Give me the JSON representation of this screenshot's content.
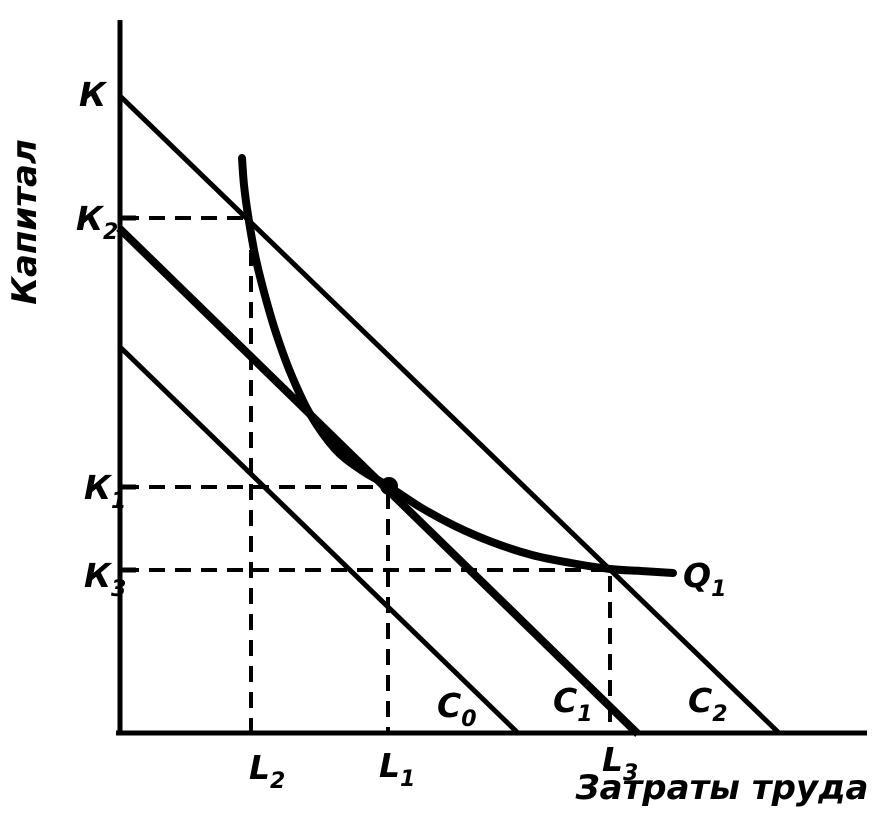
{
  "figure": {
    "background": "#ffffff",
    "ink": "#000000"
  },
  "chart_data": {
    "type": "line",
    "title": "",
    "xlabel": "Затраты труда",
    "ylabel": "Капитал",
    "grid": false,
    "legend": "none",
    "x_tick_labels": [
      "L2",
      "L1",
      "L3"
    ],
    "y_tick_labels": [
      "К",
      "К2",
      "К1",
      "К3"
    ],
    "series": [
      {
        "name": "C0",
        "kind": "isocost-line",
        "thick": false
      },
      {
        "name": "C1",
        "kind": "isocost-line",
        "thick": true
      },
      {
        "name": "C2",
        "kind": "isocost-line",
        "thick": false
      },
      {
        "name": "Q1",
        "kind": "isoquant-curve",
        "thick": true
      }
    ],
    "key_points": [
      {
        "x": "L2",
        "y": "К2",
        "meaning": "Q1 crosses C2 (upper), marked by dashed guides"
      },
      {
        "x": "L1",
        "y": "К1",
        "meaning": "tangency of Q1 and C1, marked with filled dot"
      },
      {
        "x": "L3",
        "y": "К3",
        "meaning": "Q1 crosses C2 (lower), marked by dashed guides"
      }
    ],
    "ink": "#000000",
    "dash_pattern": "16 10",
    "geometry": {
      "axis_width": 5,
      "guide_width": 4,
      "y_axis": {
        "from": [
          120,
          20
        ],
        "to": [
          120,
          735
        ]
      },
      "x_axis": {
        "from": [
          116,
          733
        ],
        "to": [
          867,
          733
        ]
      },
      "y_ticks": [
        {
          "from": [
            118,
            218
          ],
          "to": [
            136,
            218
          ]
        },
        {
          "from": [
            118,
            487
          ],
          "to": [
            136,
            487
          ]
        },
        {
          "from": [
            118,
            570
          ],
          "to": [
            136,
            570
          ]
        }
      ],
      "guides": [
        {
          "name": "guide-K2-horizontal",
          "from": [
            123,
            218
          ],
          "to": [
            246,
            218
          ]
        },
        {
          "name": "guide-L2-vertical",
          "from": [
            251,
            224
          ],
          "to": [
            251,
            731
          ]
        },
        {
          "name": "guide-K1-horizontal",
          "from": [
            123,
            487
          ],
          "to": [
            382,
            487
          ]
        },
        {
          "name": "guide-L1-vertical",
          "from": [
            388,
            493
          ],
          "to": [
            388,
            731
          ]
        },
        {
          "name": "guide-K3-horizontal",
          "from": [
            123,
            570
          ],
          "to": [
            604,
            570
          ]
        },
        {
          "name": "guide-L3-vertical",
          "from": [
            610,
            576
          ],
          "to": [
            610,
            731
          ]
        }
      ],
      "isocost_lines": [
        {
          "id": "C0",
          "from": [
            119,
            346
          ],
          "to": [
            519,
            734
          ],
          "width": 5
        },
        {
          "id": "C1",
          "from": [
            119,
            228
          ],
          "to": [
            638,
            734
          ],
          "width": 8
        },
        {
          "id": "C2",
          "from": [
            119,
            95
          ],
          "to": [
            779,
            733
          ],
          "width": 5
        }
      ],
      "isoquant": {
        "id": "Q1",
        "width": 8,
        "points": [
          [
            242,
            158
          ],
          [
            244,
            185
          ],
          [
            248,
            215
          ],
          [
            255,
            255
          ],
          [
            264,
            292
          ],
          [
            276,
            333
          ],
          [
            291,
            374
          ],
          [
            310,
            414
          ],
          [
            335,
            449
          ],
          [
            361,
            470
          ],
          [
            388,
            486
          ],
          [
            420,
            507
          ],
          [
            455,
            526
          ],
          [
            492,
            542
          ],
          [
            532,
            555
          ],
          [
            571,
            563
          ],
          [
            610,
            569
          ],
          [
            641,
            571
          ],
          [
            673,
            573
          ]
        ]
      },
      "tangency_dot": {
        "x": 389,
        "y": 486,
        "r": 9
      }
    },
    "labels": {
      "K": {
        "main": "К",
        "sub": "",
        "x": 79,
        "y": 106
      },
      "K2": {
        "main": "К",
        "sub": "2",
        "x": 76,
        "y": 230
      },
      "K1": {
        "main": "К",
        "sub": "1",
        "x": 84,
        "y": 499
      },
      "K3": {
        "main": "К",
        "sub": "3",
        "x": 84,
        "y": 587
      },
      "L2": {
        "main": "L",
        "sub": "2",
        "x": 249,
        "y": 779
      },
      "L1": {
        "main": "L",
        "sub": "1",
        "x": 379,
        "y": 777
      },
      "L3": {
        "main": "L",
        "sub": "3",
        "x": 602,
        "y": 771
      },
      "C0": {
        "main": "C",
        "sub": "0",
        "x": 437,
        "y": 717
      },
      "C1": {
        "main": "C",
        "sub": "1",
        "x": 553,
        "y": 712
      },
      "C2": {
        "main": "C",
        "sub": "2",
        "x": 688,
        "y": 712
      },
      "Q1": {
        "main": "Q",
        "sub": "1",
        "x": 683,
        "y": 587
      },
      "ylabel": {
        "text": "Капитал",
        "x": 36,
        "y": 222,
        "rotate": -90
      },
      "xlabel": {
        "text": "Затраты труда",
        "x": 722,
        "y": 799
      }
    }
  }
}
